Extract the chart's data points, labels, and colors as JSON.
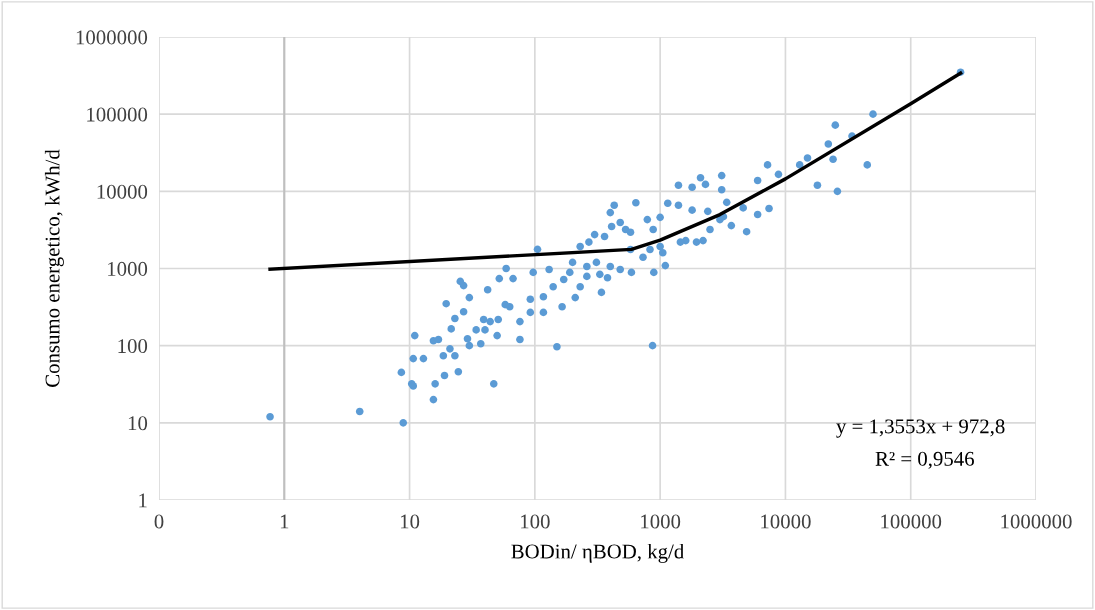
{
  "chart_data": {
    "type": "scatter",
    "xlabel": "BODin/ ηBOD, kg/d",
    "ylabel": "Consumo energetico, kWh/d",
    "log": "xy",
    "grid": true,
    "legend": false,
    "xlim": [
      0.1,
      1000000
    ],
    "ylim": [
      1,
      1000000
    ],
    "xticks": [
      {
        "value": 0.1,
        "label": "0"
      },
      1,
      10,
      100,
      1000,
      10000,
      100000,
      1000000
    ],
    "yticks": [
      1,
      10,
      100,
      1000,
      10000,
      100000,
      1000000
    ],
    "ref_lines": [
      {
        "axis": "x",
        "value": 1,
        "color": "#bfbfbf"
      }
    ],
    "annotations": [
      "y = 1,3553x + 972,8",
      "R² = 0,9546"
    ],
    "series": [
      {
        "marker": "circle",
        "color": "#5b9bd5",
        "x": [
          0.77,
          4.0,
          8.9,
          8.6,
          10.4,
          10.7,
          10.7,
          12.9,
          11,
          15.5,
          16,
          19,
          24.5,
          47,
          18.6,
          23,
          21,
          15.5,
          17,
          19.6,
          25.4,
          27,
          150,
          30,
          37,
          29,
          21.5,
          23,
          27,
          30,
          42,
          40,
          50,
          51,
          59,
          52,
          67,
          76,
          97,
          117,
          165,
          210,
          105,
          92,
          63,
          39,
          870,
          340,
          590,
          890,
          1100,
          430,
          400,
          640,
          1400,
          1800,
          2100,
          2300,
          3100,
          3100,
          1150,
          1400,
          1800,
          2400,
          3400,
          4600,
          6000,
          7200,
          8800,
          7400,
          6000,
          4900,
          3700,
          2500,
          2200,
          1950,
          1600,
          1450,
          3000,
          3200,
          1000,
          790,
          880,
          730,
          830,
          1000,
          1050,
          580,
          480,
          380,
          330,
          580,
          480,
          410,
          530,
          360,
          300,
          270,
          230,
          200,
          260,
          260,
          170,
          140,
          117,
          92,
          130,
          190,
          310,
          400,
          230,
          45000,
          250000,
          50000,
          25000,
          34000,
          22000,
          24000,
          15000,
          18000,
          26000,
          13000,
          44,
          34,
          76,
          58
        ],
        "values": [
          12,
          14,
          10,
          45,
          32,
          30,
          68,
          68,
          135,
          20,
          32,
          41,
          46,
          32,
          74,
          74,
          91,
          116,
          120,
          350,
          680,
          600,
          97,
          100,
          106,
          123,
          165,
          225,
          275,
          420,
          530,
          160,
          135,
          218,
          1000,
          740,
          740,
          205,
          890,
          270,
          320,
          420,
          1770,
          400,
          320,
          218,
          100,
          490,
          890,
          890,
          1090,
          6600,
          5300,
          7100,
          12000,
          11300,
          15000,
          12300,
          16000,
          10500,
          7000,
          6600,
          5700,
          5500,
          7200,
          6100,
          13800,
          22000,
          16600,
          6000,
          5000,
          3000,
          3600,
          3200,
          2300,
          2200,
          2300,
          2200,
          4300,
          4700,
          4600,
          4300,
          3200,
          1400,
          1760,
          1930,
          1600,
          1760,
          970,
          760,
          840,
          2950,
          3950,
          3500,
          3200,
          2600,
          2750,
          2200,
          1930,
          1200,
          790,
          1060,
          720,
          580,
          430,
          270,
          970,
          890,
          1200,
          1060,
          580,
          22000,
          350000,
          100000,
          72000,
          52000,
          41000,
          26000,
          27000,
          12000,
          10000,
          22000,
          205,
          160,
          120,
          340
        ]
      },
      {
        "type": "line",
        "marker": "none",
        "color": "#000000",
        "x": [
          0.77,
          590,
          1000,
          3000,
          10000,
          100000,
          250000
        ],
        "values": [
          980,
          1770,
          2330,
          5000,
          14500,
          136500,
          340000
        ]
      }
    ]
  }
}
